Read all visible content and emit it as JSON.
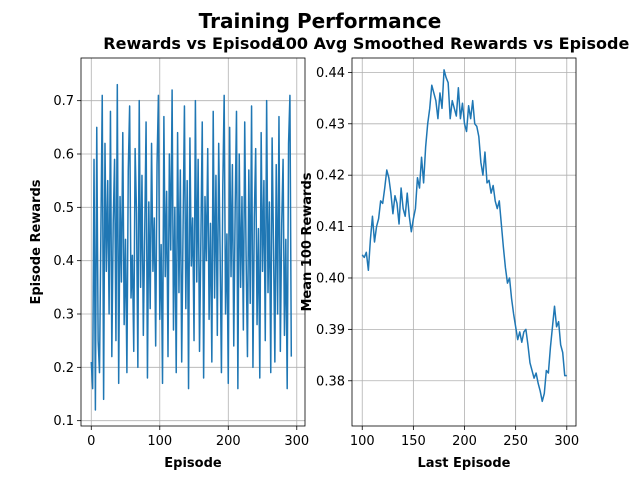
{
  "figure": {
    "title": "Training Performance"
  },
  "colors": {
    "series": "#1f77b4",
    "grid": "#b0b0b0",
    "axis": "#000000"
  },
  "chart_data": [
    {
      "type": "line",
      "title": "Rewards vs Episode",
      "xlabel": "Episode",
      "ylabel": "Episode Rewards",
      "xlim": [
        -15,
        312
      ],
      "ylim": [
        0.09,
        0.78
      ],
      "xticks": [
        0,
        100,
        200,
        300
      ],
      "yticks": [
        0.1,
        0.2,
        0.3,
        0.4,
        0.5,
        0.6,
        0.7
      ],
      "grid": true,
      "legend": "none",
      "series": [
        {
          "x_start": 0,
          "x_step": 2,
          "values": [
            0.21,
            0.16,
            0.59,
            0.12,
            0.65,
            0.25,
            0.19,
            0.45,
            0.71,
            0.14,
            0.62,
            0.38,
            0.55,
            0.3,
            0.68,
            0.22,
            0.47,
            0.59,
            0.25,
            0.73,
            0.17,
            0.52,
            0.36,
            0.64,
            0.28,
            0.44,
            0.19,
            0.57,
            0.69,
            0.33,
            0.41,
            0.23,
            0.61,
            0.49,
            0.2,
            0.7,
            0.35,
            0.56,
            0.26,
            0.45,
            0.66,
            0.18,
            0.51,
            0.31,
            0.62,
            0.38,
            0.48,
            0.24,
            0.58,
            0.71,
            0.29,
            0.43,
            0.17,
            0.67,
            0.37,
            0.53,
            0.22,
            0.6,
            0.42,
            0.72,
            0.27,
            0.5,
            0.19,
            0.64,
            0.34,
            0.57,
            0.21,
            0.46,
            0.69,
            0.31,
            0.55,
            0.16,
            0.63,
            0.39,
            0.48,
            0.25,
            0.7,
            0.36,
            0.59,
            0.23,
            0.44,
            0.66,
            0.18,
            0.52,
            0.4,
            0.61,
            0.29,
            0.47,
            0.21,
            0.68,
            0.33,
            0.56,
            0.26,
            0.62,
            0.42,
            0.19,
            0.54,
            0.71,
            0.3,
            0.45,
            0.17,
            0.65,
            0.37,
            0.58,
            0.24,
            0.49,
            0.68,
            0.16,
            0.6,
            0.35,
            0.52,
            0.27,
            0.66,
            0.41,
            0.22,
            0.57,
            0.32,
            0.69,
            0.2,
            0.48,
            0.61,
            0.28,
            0.46,
            0.18,
            0.64,
            0.38,
            0.55,
            0.25,
            0.7,
            0.34,
            0.51,
            0.19,
            0.63,
            0.43,
            0.21,
            0.58,
            0.3,
            0.67,
            0.23,
            0.47,
            0.59,
            0.26,
            0.44,
            0.16,
            0.62,
            0.71,
            0.22
          ]
        }
      ]
    },
    {
      "type": "line",
      "title": "100 Avg Smoothed Rewards vs Episode",
      "xlabel": "Last Episode",
      "ylabel": "Mean 100 Rewards",
      "xlim": [
        90,
        309
      ],
      "ylim": [
        0.3712,
        0.4428
      ],
      "xticks": [
        100,
        150,
        200,
        250,
        300
      ],
      "yticks": [
        0.38,
        0.39,
        0.4,
        0.41,
        0.42,
        0.43,
        0.44
      ],
      "grid": true,
      "legend": "none",
      "series": [
        {
          "x_start": 100,
          "x_step": 2,
          "values": [
            0.4045,
            0.404,
            0.405,
            0.4015,
            0.4075,
            0.412,
            0.407,
            0.41,
            0.4115,
            0.415,
            0.4145,
            0.4175,
            0.421,
            0.4195,
            0.4165,
            0.4125,
            0.416,
            0.4145,
            0.4105,
            0.4175,
            0.4135,
            0.412,
            0.4165,
            0.412,
            0.409,
            0.4115,
            0.4135,
            0.4195,
            0.4175,
            0.4235,
            0.4185,
            0.4255,
            0.43,
            0.433,
            0.4375,
            0.436,
            0.4345,
            0.431,
            0.436,
            0.433,
            0.4405,
            0.439,
            0.438,
            0.431,
            0.4345,
            0.433,
            0.4315,
            0.437,
            0.431,
            0.434,
            0.43,
            0.4285,
            0.4335,
            0.431,
            0.4345,
            0.43,
            0.4295,
            0.4275,
            0.4225,
            0.42,
            0.4245,
            0.4185,
            0.419,
            0.4165,
            0.418,
            0.415,
            0.4135,
            0.415,
            0.4105,
            0.406,
            0.402,
            0.399,
            0.4,
            0.396,
            0.393,
            0.3905,
            0.388,
            0.3895,
            0.3875,
            0.3895,
            0.39,
            0.387,
            0.3835,
            0.382,
            0.3805,
            0.3815,
            0.3795,
            0.378,
            0.376,
            0.3775,
            0.382,
            0.3815,
            0.3865,
            0.3905,
            0.3945,
            0.3905,
            0.3915,
            0.387,
            0.3855,
            0.381,
            0.381
          ]
        }
      ]
    }
  ]
}
